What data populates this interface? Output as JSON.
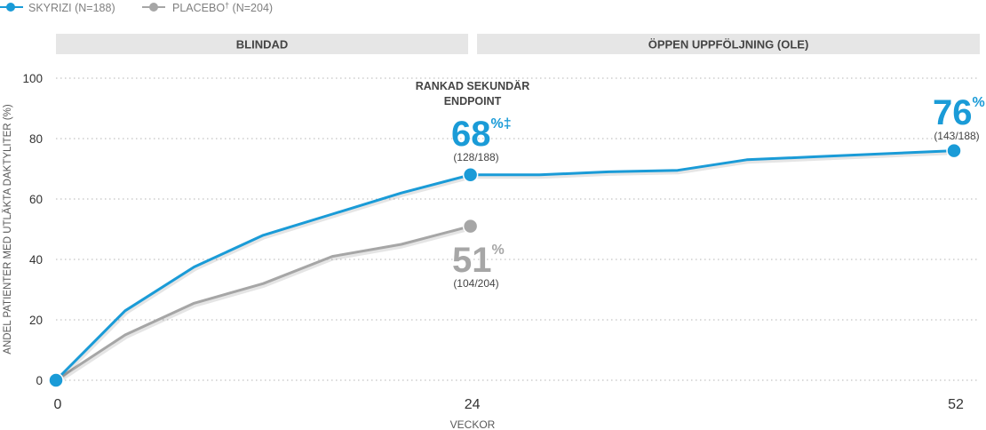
{
  "chart_data": {
    "type": "line",
    "xlabel": "VECKOR",
    "ylabel": "ANDEL PATIENTER MED UTLÄKTA DAKTYLITER (%)",
    "xlim": [
      0,
      52
    ],
    "ylim": [
      0,
      100
    ],
    "x_ticks": [
      {
        "value": 0,
        "label": "0"
      },
      {
        "value": 24,
        "label": "24"
      },
      {
        "value": 52,
        "label": "52"
      }
    ],
    "y_ticks": [
      {
        "value": 0,
        "label": "0"
      },
      {
        "value": 20,
        "label": "20"
      },
      {
        "value": 40,
        "label": "40"
      },
      {
        "value": 60,
        "label": "60"
      },
      {
        "value": 80,
        "label": "80"
      },
      {
        "value": 100,
        "label": "100"
      }
    ],
    "grid": true,
    "legend": [
      {
        "name": "SKYRIZI (N=188)",
        "color": "#1a9bd7"
      },
      {
        "name_main": "PLACEBO",
        "name_sup": "†",
        "name_rest": " (N=204)",
        "color": "#a6a6a6"
      }
    ],
    "periods": [
      {
        "label": "BLINDAD",
        "from": 0,
        "to": 24
      },
      {
        "label": "ÖPPEN UPPFÖLJNING (OLE)",
        "from": 24,
        "to": 52
      }
    ],
    "series": [
      {
        "name": "SKYRIZI (N=188)",
        "color": "#1a9bd7",
        "x": [
          0,
          4,
          8,
          12,
          16,
          20,
          24,
          28,
          32,
          36,
          40,
          44,
          48,
          52
        ],
        "y": [
          0,
          23,
          37.5,
          48,
          55,
          62,
          68,
          68,
          69,
          69.5,
          73,
          74,
          75,
          76
        ]
      },
      {
        "name": "PLACEBO† (N=204)",
        "color": "#a6a6a6",
        "x": [
          0,
          4,
          8,
          12,
          16,
          20,
          24
        ],
        "y": [
          0,
          15,
          25.5,
          32,
          41,
          45,
          51
        ]
      }
    ],
    "annotations": {
      "endpoint_line1": "RANKAD SEKUNDÄR",
      "endpoint_line2": "ENDPOINT",
      "skyrizi_24_value": "68",
      "skyrizi_24_suffix": "%‡",
      "skyrizi_24_count": "(128/188)",
      "placebo_24_value": "51",
      "placebo_24_suffix": "%",
      "placebo_24_count": "(104/204)",
      "skyrizi_52_value": "76",
      "skyrizi_52_suffix": "%",
      "skyrizi_52_count": "(143/188)"
    }
  }
}
